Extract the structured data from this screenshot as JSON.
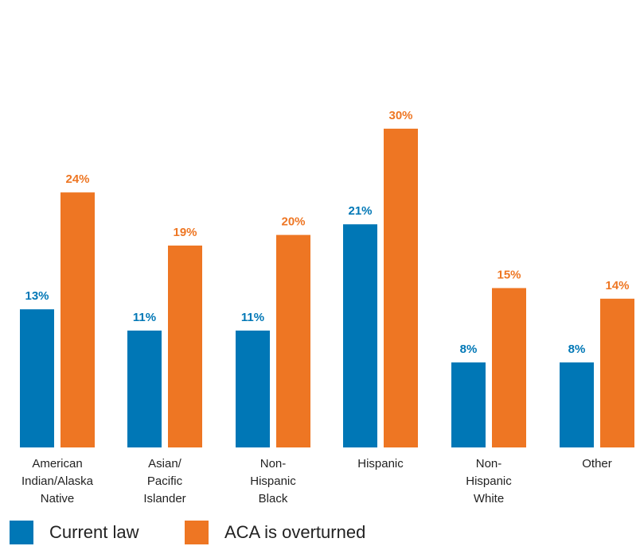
{
  "chart_data": {
    "type": "bar",
    "categories": [
      [
        "American",
        "Indian/Alaska",
        "Native"
      ],
      [
        "Asian/",
        "Pacific",
        "Islander"
      ],
      [
        "Non-",
        "Hispanic",
        "Black"
      ],
      [
        "Hispanic"
      ],
      [
        "Non-",
        "Hispanic",
        "White"
      ],
      [
        "Other"
      ]
    ],
    "series": [
      {
        "name": "Current law",
        "color": "#0077b6",
        "values": [
          13,
          11,
          11,
          21,
          8,
          8
        ],
        "labels": [
          "13%",
          "11%",
          "11%",
          "21%",
          "8%",
          "8%"
        ]
      },
      {
        "name": "ACA is overturned",
        "color": "#ee7623",
        "values": [
          24,
          19,
          20,
          30,
          15,
          14
        ],
        "labels": [
          "24%",
          "19%",
          "20%",
          "30%",
          "15%",
          "14%"
        ]
      }
    ],
    "ylim": [
      0,
      30
    ],
    "grid": false,
    "legend": "bottom-left"
  }
}
